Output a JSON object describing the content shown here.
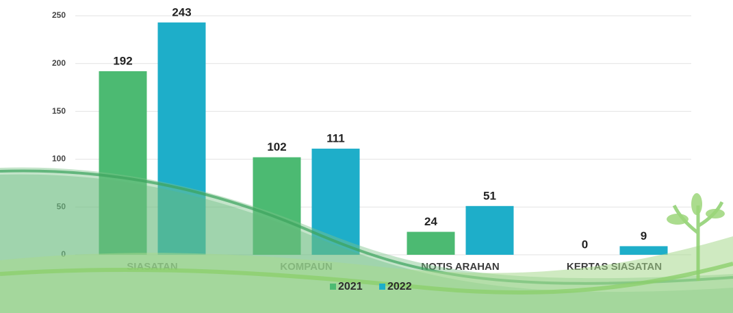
{
  "chart_data": {
    "type": "bar",
    "categories": [
      "SIASATAN",
      "KOMPAUN",
      "NOTIS ARAHAN",
      "KERTAS SIASATAN"
    ],
    "series": [
      {
        "name": "2021",
        "color": "#4cba72",
        "values": [
          192,
          102,
          24,
          0
        ]
      },
      {
        "name": "2022",
        "color": "#1eaec9",
        "values": [
          243,
          111,
          51,
          9
        ]
      }
    ],
    "ylim": [
      0,
      250
    ],
    "yticks": [
      0,
      50,
      100,
      150,
      200,
      250
    ],
    "grid": true
  }
}
